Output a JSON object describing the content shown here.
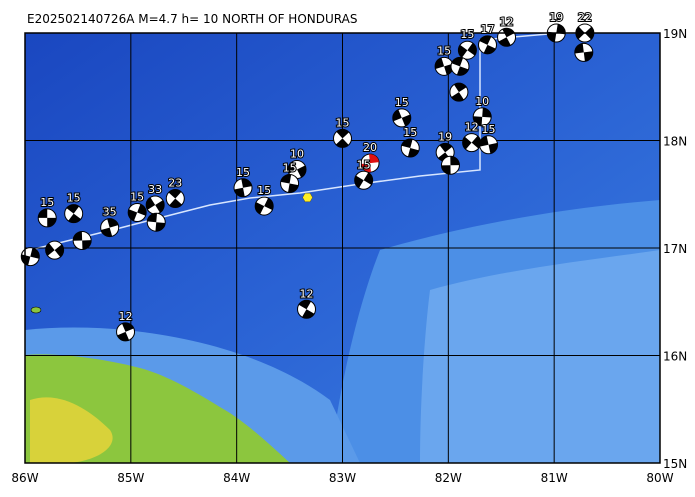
{
  "map": {
    "title": "E202502140726A M=4.7 h= 10 NORTH OF HONDURAS",
    "xlim": [
      -86,
      -80
    ],
    "ylim": [
      15,
      19
    ],
    "xticks": [
      {
        "value": -86,
        "label": "86W"
      },
      {
        "value": -85,
        "label": "85W"
      },
      {
        "value": -84,
        "label": "84W"
      },
      {
        "value": -83,
        "label": "83W"
      },
      {
        "value": -82,
        "label": "82W"
      },
      {
        "value": -81,
        "label": "81W"
      },
      {
        "value": -80,
        "label": "80W"
      }
    ],
    "yticks": [
      {
        "value": 19,
        "label": "19N"
      },
      {
        "value": 18,
        "label": "18N"
      },
      {
        "value": 17,
        "label": "17N"
      },
      {
        "value": 16,
        "label": "16N"
      },
      {
        "value": 15,
        "label": "15N"
      }
    ],
    "epicenter": {
      "lon": -83.33,
      "lat": 17.47,
      "color": "#ffee22"
    },
    "events": [
      {
        "lon": -85.79,
        "lat": 17.28,
        "depth": 15
      },
      {
        "lon": -85.54,
        "lat": 17.32,
        "depth": 15
      },
      {
        "lon": -85.2,
        "lat": 17.19,
        "depth": 35
      },
      {
        "lon": -84.94,
        "lat": 17.33,
        "depth": 15
      },
      {
        "lon": -84.77,
        "lat": 17.4,
        "depth": 33
      },
      {
        "lon": -84.76,
        "lat": 17.24
      },
      {
        "lon": -84.58,
        "lat": 17.46,
        "depth": 23
      },
      {
        "lon": -83.94,
        "lat": 17.56,
        "depth": 15
      },
      {
        "lon": -83.74,
        "lat": 17.39,
        "depth": 15
      },
      {
        "lon": -83.43,
        "lat": 17.73,
        "depth": 10
      },
      {
        "lon": -83.5,
        "lat": 17.6,
        "depth": 15
      },
      {
        "lon": -83.0,
        "lat": 18.02,
        "depth": 15
      },
      {
        "lon": -82.74,
        "lat": 17.79,
        "depth": 20,
        "color": "#e01010"
      },
      {
        "lon": -82.8,
        "lat": 17.63,
        "depth": 15
      },
      {
        "lon": -82.44,
        "lat": 18.21,
        "depth": 15
      },
      {
        "lon": -82.36,
        "lat": 17.93,
        "depth": 15
      },
      {
        "lon": -82.03,
        "lat": 17.89,
        "depth": 19
      },
      {
        "lon": -81.98,
        "lat": 17.77
      },
      {
        "lon": -81.82,
        "lat": 18.84,
        "depth": 15
      },
      {
        "lon": -82.04,
        "lat": 18.69,
        "depth": 15
      },
      {
        "lon": -81.89,
        "lat": 18.69
      },
      {
        "lon": -81.9,
        "lat": 18.45
      },
      {
        "lon": -81.68,
        "lat": 18.22,
        "depth": 10
      },
      {
        "lon": -81.78,
        "lat": 17.98,
        "depth": 12
      },
      {
        "lon": -81.62,
        "lat": 17.96,
        "depth": 15
      },
      {
        "lon": -81.63,
        "lat": 18.89,
        "depth": 17
      },
      {
        "lon": -81.45,
        "lat": 18.96,
        "depth": 12
      },
      {
        "lon": -80.98,
        "lat": 19.0,
        "depth": 19
      },
      {
        "lon": -80.71,
        "lat": 19.0,
        "depth": 22
      },
      {
        "lon": -80.72,
        "lat": 18.82
      },
      {
        "lon": -83.34,
        "lat": 16.43,
        "depth": 12
      },
      {
        "lon": -85.05,
        "lat": 16.22,
        "depth": 12
      },
      {
        "lon": -85.95,
        "lat": 16.92
      },
      {
        "lon": -85.72,
        "lat": 16.98
      },
      {
        "lon": -85.46,
        "lat": 17.07
      }
    ]
  }
}
